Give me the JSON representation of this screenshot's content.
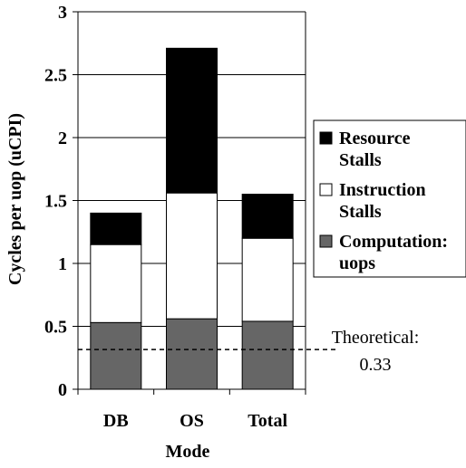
{
  "chart_data": {
    "type": "bar",
    "stacked": true,
    "categories": [
      "DB",
      "OS",
      "Total"
    ],
    "series": [
      {
        "name": "Computation: uops",
        "legend_lines": [
          "Computation:",
          "uops"
        ],
        "color": "#666666",
        "values": [
          0.53,
          0.56,
          0.54
        ]
      },
      {
        "name": "Instruction Stalls",
        "legend_lines": [
          "Instruction",
          "Stalls"
        ],
        "color": "#ffffff",
        "values": [
          0.62,
          1.0,
          0.66
        ]
      },
      {
        "name": "Resource Stalls",
        "legend_lines": [
          "Resource",
          "Stalls"
        ],
        "color": "#000000",
        "values": [
          0.25,
          1.15,
          0.35
        ]
      }
    ],
    "xlabel": "Mode",
    "ylabel": "Cycles per uop (uCPI)",
    "ylim": [
      0,
      3
    ],
    "yticks": [
      0,
      0.5,
      1,
      1.5,
      2,
      2.5,
      3
    ],
    "ytick_labels": [
      "0",
      "0.5",
      "1",
      "1.5",
      "2",
      "2.5",
      "3"
    ],
    "grid": true,
    "legend_position": "right",
    "reference_line": {
      "value": 0.33,
      "style": "dashed",
      "label_lines": [
        "Theoretical:",
        "0.33"
      ]
    }
  }
}
